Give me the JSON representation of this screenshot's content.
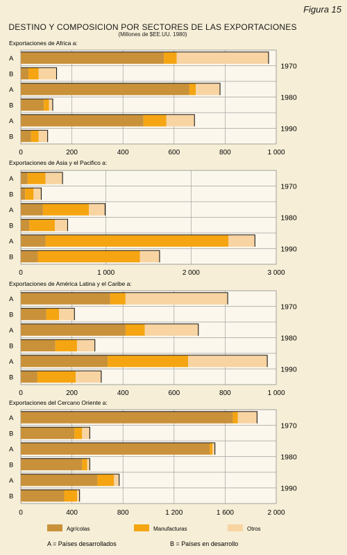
{
  "figure_label": "Figura 15",
  "title": "DESTINO Y COMPOSICION POR SECTORES DE LAS EXPORTACIONES",
  "subtitle": "(Millones de $EE.UU. 1980)",
  "legend": {
    "series": [
      {
        "name": "Agrícolas",
        "color": "#c9913a"
      },
      {
        "name": "Manufacturas",
        "color": "#f5a512"
      },
      {
        "name": "Otros",
        "color": "#f8d4a2"
      }
    ],
    "notes": [
      "A = Países desarrollados",
      "B = Países en desarrollo"
    ]
  },
  "chart_data": [
    {
      "type": "bar",
      "stacked": true,
      "orientation": "horizontal",
      "title": "Exportaciones de Africa a:",
      "xlim": [
        0,
        1000
      ],
      "xticks": [
        "0",
        "200",
        "400",
        "600",
        "800",
        "1 000"
      ],
      "grid": true,
      "categories": [
        "A",
        "B",
        "A",
        "B",
        "A",
        "B"
      ],
      "year_labels": [
        "1970",
        "1980",
        "1990"
      ],
      "series": [
        {
          "name": "Agrícolas",
          "values": [
            560,
            30,
            660,
            90,
            480,
            40
          ]
        },
        {
          "name": "Manufacturas",
          "values": [
            50,
            40,
            25,
            20,
            90,
            30
          ]
        },
        {
          "name": "Otros",
          "values": [
            360,
            70,
            95,
            15,
            110,
            35
          ]
        }
      ]
    },
    {
      "type": "bar",
      "stacked": true,
      "orientation": "horizontal",
      "title": "Exportaciones de Asia y el Pacifico a:",
      "xlim": [
        0,
        3000
      ],
      "xticks": [
        "0",
        "1 000",
        "2 000",
        "3 000"
      ],
      "grid": true,
      "categories": [
        "A",
        "B",
        "A",
        "B",
        "A",
        "B"
      ],
      "year_labels": [
        "1970",
        "1980",
        "1990"
      ],
      "series": [
        {
          "name": "Agrícolas",
          "values": [
            80,
            50,
            260,
            100,
            290,
            200
          ]
        },
        {
          "name": "Manufacturas",
          "values": [
            210,
            100,
            540,
            300,
            2150,
            1200
          ]
        },
        {
          "name": "Otros",
          "values": [
            200,
            90,
            190,
            150,
            310,
            230
          ]
        }
      ]
    },
    {
      "type": "bar",
      "stacked": true,
      "orientation": "horizontal",
      "title": "Exportaciones de América Latina y el Caribe a:",
      "xlim": [
        0,
        1000
      ],
      "xticks": [
        "0",
        "200",
        "400",
        "600",
        "800",
        "1 000"
      ],
      "grid": true,
      "categories": [
        "A",
        "B",
        "A",
        "B",
        "A",
        "B"
      ],
      "year_labels": [
        "1970",
        "1980",
        "1990"
      ],
      "series": [
        {
          "name": "Agrícolas",
          "values": [
            350,
            100,
            410,
            135,
            340,
            65
          ]
        },
        {
          "name": "Manufacturas",
          "values": [
            60,
            50,
            75,
            85,
            315,
            150
          ]
        },
        {
          "name": "Otros",
          "values": [
            400,
            60,
            210,
            70,
            310,
            100
          ]
        }
      ]
    },
    {
      "type": "bar",
      "stacked": true,
      "orientation": "horizontal",
      "title": "Exportaciones del Cercano Oriente a:",
      "xlim": [
        0,
        2000
      ],
      "xticks": [
        "0",
        "400",
        "800",
        "1 200",
        "1 600",
        "2 000"
      ],
      "grid": true,
      "categories": [
        "A",
        "B",
        "A",
        "B",
        "A",
        "B"
      ],
      "year_labels": [
        "1970",
        "1980",
        "1990"
      ],
      "series": [
        {
          "name": "Agrícolas",
          "values": [
            1660,
            420,
            1480,
            480,
            600,
            340
          ]
        },
        {
          "name": "Manufacturas",
          "values": [
            40,
            60,
            20,
            40,
            130,
            100
          ]
        },
        {
          "name": "Otros",
          "values": [
            150,
            60,
            20,
            20,
            40,
            20
          ]
        }
      ]
    }
  ]
}
